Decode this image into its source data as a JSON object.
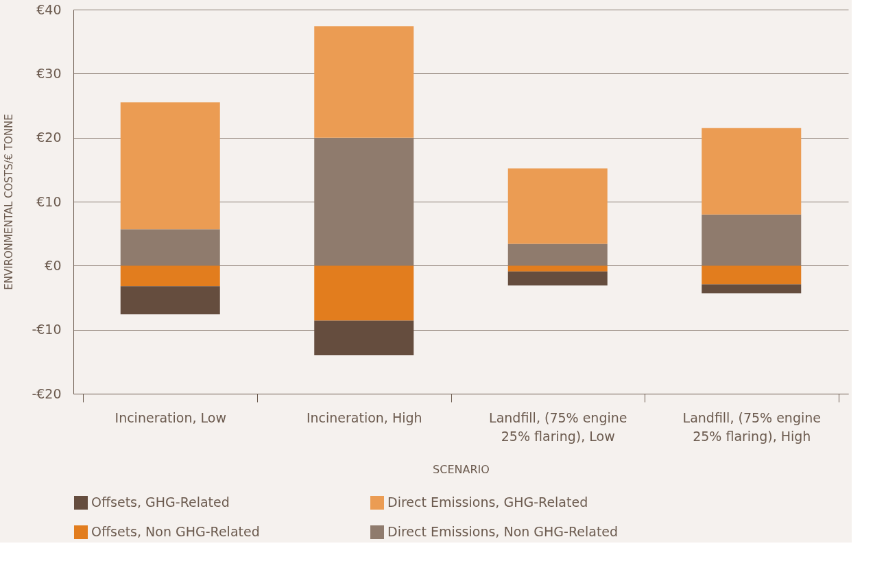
{
  "chart_data": {
    "type": "bar",
    "stacked": true,
    "xlabel": "SCENARIO",
    "ylabel": "ENVIRONMENTAL COSTS/€ TONNE",
    "categories": [
      "Incineration, Low",
      "Incineration, High",
      "Landfill, (75% engine 25% flaring), Low",
      "Landfill, (75% engine 25% flaring), High"
    ],
    "series": [
      {
        "name": "Offsets, Non GHG-Related",
        "color": "#e27d1e",
        "values": [
          -3.2,
          -8.6,
          -0.9,
          -2.9
        ]
      },
      {
        "name": "Direct Emissions, Non GHG-Related",
        "color": "#8f7b6d",
        "values": [
          5.7,
          20.0,
          3.4,
          8.0
        ]
      },
      {
        "name": "Offsets, GHG-Related",
        "color": "#654d3e",
        "values": [
          -4.4,
          -5.4,
          -2.2,
          -1.4
        ]
      },
      {
        "name": "Direct Emissions, GHG-Related",
        "color": "#eb9c53",
        "values": [
          19.8,
          17.4,
          11.8,
          13.5
        ]
      }
    ],
    "ylim": [
      -20,
      40
    ],
    "yticks": [
      {
        "value": -20,
        "label": "-€20"
      },
      {
        "value": -10,
        "label": "-€10"
      },
      {
        "value": 0,
        "label": "€0"
      },
      {
        "value": 10,
        "label": "€10"
      },
      {
        "value": 20,
        "label": "€20"
      },
      {
        "value": 30,
        "label": "€30"
      },
      {
        "value": 40,
        "label": "€40"
      }
    ],
    "grid": "y",
    "legend": "bottom"
  }
}
